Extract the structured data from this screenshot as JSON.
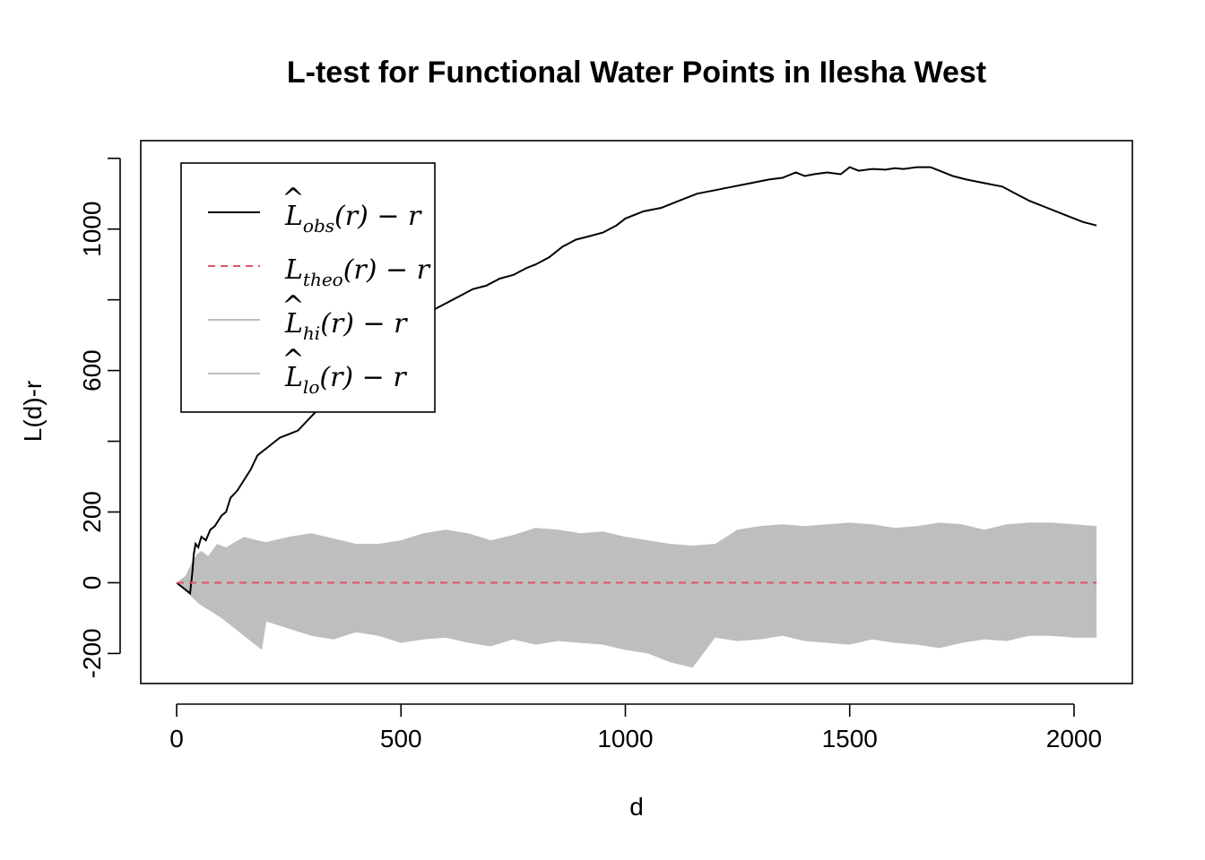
{
  "chart_data": {
    "type": "line",
    "title": "L-test for Functional Water Points in Ilesha West",
    "xlabel": "d",
    "ylabel": "L(d)-r",
    "xlim": [
      -80,
      2130
    ],
    "ylim": [
      -285,
      1250
    ],
    "x_ticks": [
      0,
      500,
      1000,
      1500,
      2000
    ],
    "x_tick_labels": [
      "0",
      "500",
      "1000",
      "1500",
      "2000"
    ],
    "y_ticks": [
      -200,
      0,
      200,
      600,
      1000
    ],
    "y_tick_labels": [
      "-200",
      "0",
      "200",
      "600",
      "1000"
    ],
    "y_minor_ticks": [
      400,
      800,
      1200
    ],
    "grid": false,
    "legend_position": "top-left",
    "legend": [
      {
        "base": "L",
        "hat": true,
        "sub": "obs",
        "tail": "(r) − r",
        "color": "#000000",
        "style": "solid"
      },
      {
        "base": "L",
        "hat": false,
        "sub": "theo",
        "tail": "(r) − r",
        "color": "#DF536B",
        "style": "dashed"
      },
      {
        "base": "L",
        "hat": true,
        "sub": "hi",
        "tail": "(r) − r",
        "color": "#BEBEBE",
        "style": "solid"
      },
      {
        "base": "L",
        "hat": true,
        "sub": "lo",
        "tail": "(r) − r",
        "color": "#BEBEBE",
        "style": "solid"
      }
    ],
    "series": [
      {
        "name": "obs",
        "color": "#000000",
        "x": [
          0,
          20,
          30,
          35,
          38,
          42,
          48,
          55,
          65,
          75,
          85,
          100,
          110,
          120,
          135,
          150,
          165,
          180,
          190,
          200,
          215,
          230,
          250,
          270,
          285,
          300,
          315,
          330,
          345,
          360,
          380,
          400,
          420,
          440,
          450,
          470,
          490,
          510,
          540,
          570,
          600,
          630,
          660,
          690,
          720,
          750,
          780,
          800,
          830,
          860,
          890,
          920,
          950,
          980,
          1000,
          1040,
          1080,
          1120,
          1160,
          1200,
          1240,
          1280,
          1320,
          1350,
          1380,
          1400,
          1420,
          1450,
          1480,
          1500,
          1520,
          1550,
          1580,
          1600,
          1620,
          1650,
          1680,
          1700,
          1730,
          1760,
          1800,
          1840,
          1870,
          1900,
          1940,
          1980,
          2020,
          2050
        ],
        "y": [
          0,
          -20,
          -30,
          30,
          80,
          110,
          100,
          130,
          120,
          150,
          160,
          190,
          200,
          240,
          260,
          290,
          320,
          360,
          370,
          380,
          395,
          410,
          420,
          430,
          450,
          470,
          490,
          510,
          530,
          550,
          560,
          580,
          600,
          620,
          640,
          660,
          690,
          720,
          740,
          770,
          790,
          810,
          830,
          840,
          860,
          870,
          890,
          900,
          920,
          950,
          970,
          980,
          990,
          1010,
          1030,
          1050,
          1060,
          1080,
          1100,
          1110,
          1120,
          1130,
          1140,
          1145,
          1160,
          1150,
          1155,
          1160,
          1155,
          1175,
          1165,
          1170,
          1168,
          1172,
          1170,
          1175,
          1175,
          1165,
          1150,
          1140,
          1130,
          1120,
          1100,
          1080,
          1060,
          1040,
          1020,
          1010
        ]
      },
      {
        "name": "theo",
        "color": "#DF536B",
        "x": [
          0,
          2050
        ],
        "y": [
          0,
          0
        ]
      }
    ],
    "envelope": {
      "name": "hi/lo band",
      "color": "#BEBEBE",
      "hi_x": [
        0,
        20,
        35,
        45,
        55,
        70,
        90,
        110,
        130,
        150,
        180,
        200,
        250,
        300,
        350,
        400,
        450,
        500,
        550,
        600,
        650,
        700,
        750,
        800,
        850,
        900,
        950,
        1000,
        1050,
        1100,
        1150,
        1200,
        1250,
        1300,
        1350,
        1400,
        1450,
        1500,
        1550,
        1600,
        1650,
        1700,
        1750,
        1800,
        1850,
        1900,
        1950,
        2000,
        2050
      ],
      "hi_y": [
        0,
        20,
        60,
        80,
        90,
        75,
        110,
        100,
        115,
        130,
        120,
        115,
        130,
        140,
        125,
        110,
        110,
        120,
        140,
        150,
        140,
        120,
        135,
        155,
        150,
        140,
        145,
        130,
        120,
        110,
        105,
        110,
        150,
        160,
        165,
        160,
        165,
        170,
        165,
        155,
        160,
        170,
        165,
        150,
        165,
        170,
        170,
        165,
        160
      ],
      "lo_x": [
        0,
        50,
        100,
        150,
        190,
        200,
        250,
        300,
        350,
        400,
        450,
        500,
        550,
        600,
        650,
        700,
        750,
        800,
        850,
        900,
        950,
        1000,
        1050,
        1100,
        1150,
        1200,
        1250,
        1300,
        1350,
        1400,
        1450,
        1500,
        1550,
        1600,
        1650,
        1700,
        1750,
        1800,
        1850,
        1900,
        1950,
        2000,
        2050
      ],
      "lo_y": [
        0,
        -60,
        -100,
        -150,
        -190,
        -110,
        -130,
        -150,
        -160,
        -140,
        -150,
        -170,
        -160,
        -155,
        -170,
        -180,
        -160,
        -175,
        -165,
        -170,
        -175,
        -190,
        -200,
        -225,
        -240,
        -155,
        -165,
        -160,
        -150,
        -165,
        -170,
        -175,
        -160,
        -170,
        -175,
        -185,
        -170,
        -160,
        -165,
        -150,
        -150,
        -155,
        -155
      ]
    }
  }
}
